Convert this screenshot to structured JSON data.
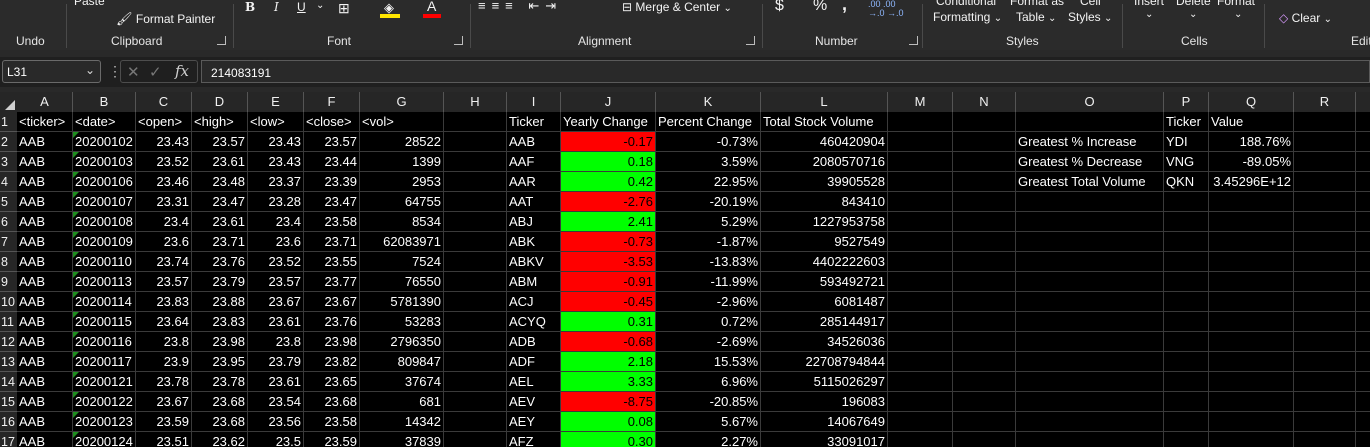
{
  "ribbon": {
    "labels": {
      "paste": "Paste",
      "format_painter": "Format Painter",
      "bold": "B",
      "italic": "I",
      "underline": "U",
      "merge_center": "Merge & Center",
      "currency": "$",
      "percent": "%",
      "comma": ",",
      "conditional_formatting": "Formatting",
      "conditional_top": "Conditional",
      "format_as_table_top": "Format as",
      "format_as_table": "Table",
      "cell_styles_top": "Cell",
      "cell_styles": "Styles",
      "insert": "Insert",
      "delete": "Delete",
      "format": "Format",
      "clear": "Clear"
    },
    "groups": {
      "undo": "Undo",
      "clipboard": "Clipboard",
      "font": "Font",
      "alignment": "Alignment",
      "number": "Number",
      "styles": "Styles",
      "cells": "Cells",
      "editing": "Editi"
    },
    "colors": {
      "highlight": "#ffe600",
      "font_color": "#ff0000",
      "background": "#2b2b2b"
    }
  },
  "formula_bar": {
    "name_box": "L31",
    "fx": "fx",
    "formula": "214083191"
  },
  "columns": [
    "A",
    "B",
    "C",
    "D",
    "E",
    "F",
    "G",
    "H",
    "I",
    "J",
    "K",
    "L",
    "M",
    "N",
    "O",
    "P",
    "Q",
    "R"
  ],
  "rows": [
    "1",
    "2",
    "3",
    "4",
    "5",
    "6",
    "7",
    "8",
    "9",
    "10",
    "11",
    "12",
    "13",
    "14",
    "15",
    "16",
    "17"
  ],
  "sheet": {
    "stock_headers": [
      "<ticker>",
      "<date>",
      "<open>",
      "<high>",
      "<low>",
      "<close>",
      "<vol>"
    ],
    "stock_rows": [
      [
        "AAB",
        "20200102",
        "23.43",
        "23.57",
        "23.43",
        "23.57",
        "28522"
      ],
      [
        "AAB",
        "20200103",
        "23.52",
        "23.61",
        "23.43",
        "23.44",
        "1399"
      ],
      [
        "AAB",
        "20200106",
        "23.46",
        "23.48",
        "23.37",
        "23.39",
        "2953"
      ],
      [
        "AAB",
        "20200107",
        "23.31",
        "23.47",
        "23.28",
        "23.47",
        "64755"
      ],
      [
        "AAB",
        "20200108",
        "23.4",
        "23.61",
        "23.4",
        "23.58",
        "8534"
      ],
      [
        "AAB",
        "20200109",
        "23.6",
        "23.71",
        "23.6",
        "23.71",
        "62083971"
      ],
      [
        "AAB",
        "20200110",
        "23.74",
        "23.76",
        "23.52",
        "23.55",
        "7524"
      ],
      [
        "AAB",
        "20200113",
        "23.57",
        "23.79",
        "23.57",
        "23.77",
        "76550"
      ],
      [
        "AAB",
        "20200114",
        "23.83",
        "23.88",
        "23.67",
        "23.67",
        "5781390"
      ],
      [
        "AAB",
        "20200115",
        "23.64",
        "23.83",
        "23.61",
        "23.76",
        "53283"
      ],
      [
        "AAB",
        "20200116",
        "23.8",
        "23.98",
        "23.8",
        "23.98",
        "2796350"
      ],
      [
        "AAB",
        "20200117",
        "23.9",
        "23.95",
        "23.79",
        "23.82",
        "809847"
      ],
      [
        "AAB",
        "20200121",
        "23.78",
        "23.78",
        "23.61",
        "23.65",
        "37674"
      ],
      [
        "AAB",
        "20200122",
        "23.67",
        "23.68",
        "23.54",
        "23.68",
        "681"
      ],
      [
        "AAB",
        "20200123",
        "23.59",
        "23.68",
        "23.56",
        "23.58",
        "14342"
      ],
      [
        "AAB",
        "20200124",
        "23.51",
        "23.62",
        "23.5",
        "23.59",
        "37839"
      ]
    ],
    "summary_headers": [
      "Ticker",
      "Yearly Change",
      "Percent Change",
      "Total Stock Volume"
    ],
    "summary_rows": [
      [
        "AAB",
        "-0.17",
        "-0.73%",
        "460420904"
      ],
      [
        "AAF",
        "0.18",
        "3.59%",
        "2080570716"
      ],
      [
        "AAR",
        "0.42",
        "22.95%",
        "39905528"
      ],
      [
        "AAT",
        "-2.76",
        "-20.19%",
        "843410"
      ],
      [
        "ABJ",
        "2.41",
        "5.29%",
        "1227953758"
      ],
      [
        "ABK",
        "-0.73",
        "-1.87%",
        "9527549"
      ],
      [
        "ABKV",
        "-3.53",
        "-13.83%",
        "4402222603"
      ],
      [
        "ABM",
        "-0.91",
        "-11.99%",
        "593492721"
      ],
      [
        "ACJ",
        "-0.45",
        "-2.96%",
        "6081487"
      ],
      [
        "ACYQ",
        "0.31",
        "0.72%",
        "285144917"
      ],
      [
        "ADB",
        "-0.68",
        "-2.69%",
        "34526036"
      ],
      [
        "ADF",
        "2.18",
        "15.53%",
        "22708794844"
      ],
      [
        "AEL",
        "3.33",
        "6.96%",
        "5115026297"
      ],
      [
        "AEV",
        "-8.75",
        "-20.85%",
        "196083"
      ],
      [
        "AEY",
        "0.08",
        "5.67%",
        "14067649"
      ],
      [
        "AFZ",
        "0.30",
        "2.27%",
        "33091017"
      ]
    ],
    "greatest_headers": [
      "Ticker",
      "Value"
    ],
    "greatest_rows": [
      [
        "Greatest % Increase",
        "YDI",
        "188.76%"
      ],
      [
        "Greatest % Decrease",
        "VNG",
        "-89.05%"
      ],
      [
        "Greatest Total Volume",
        "QKN",
        "3.45296E+12"
      ]
    ],
    "colors": {
      "positive": "#00ff00",
      "negative": "#ff0000",
      "grid_bg": "#000000"
    }
  }
}
